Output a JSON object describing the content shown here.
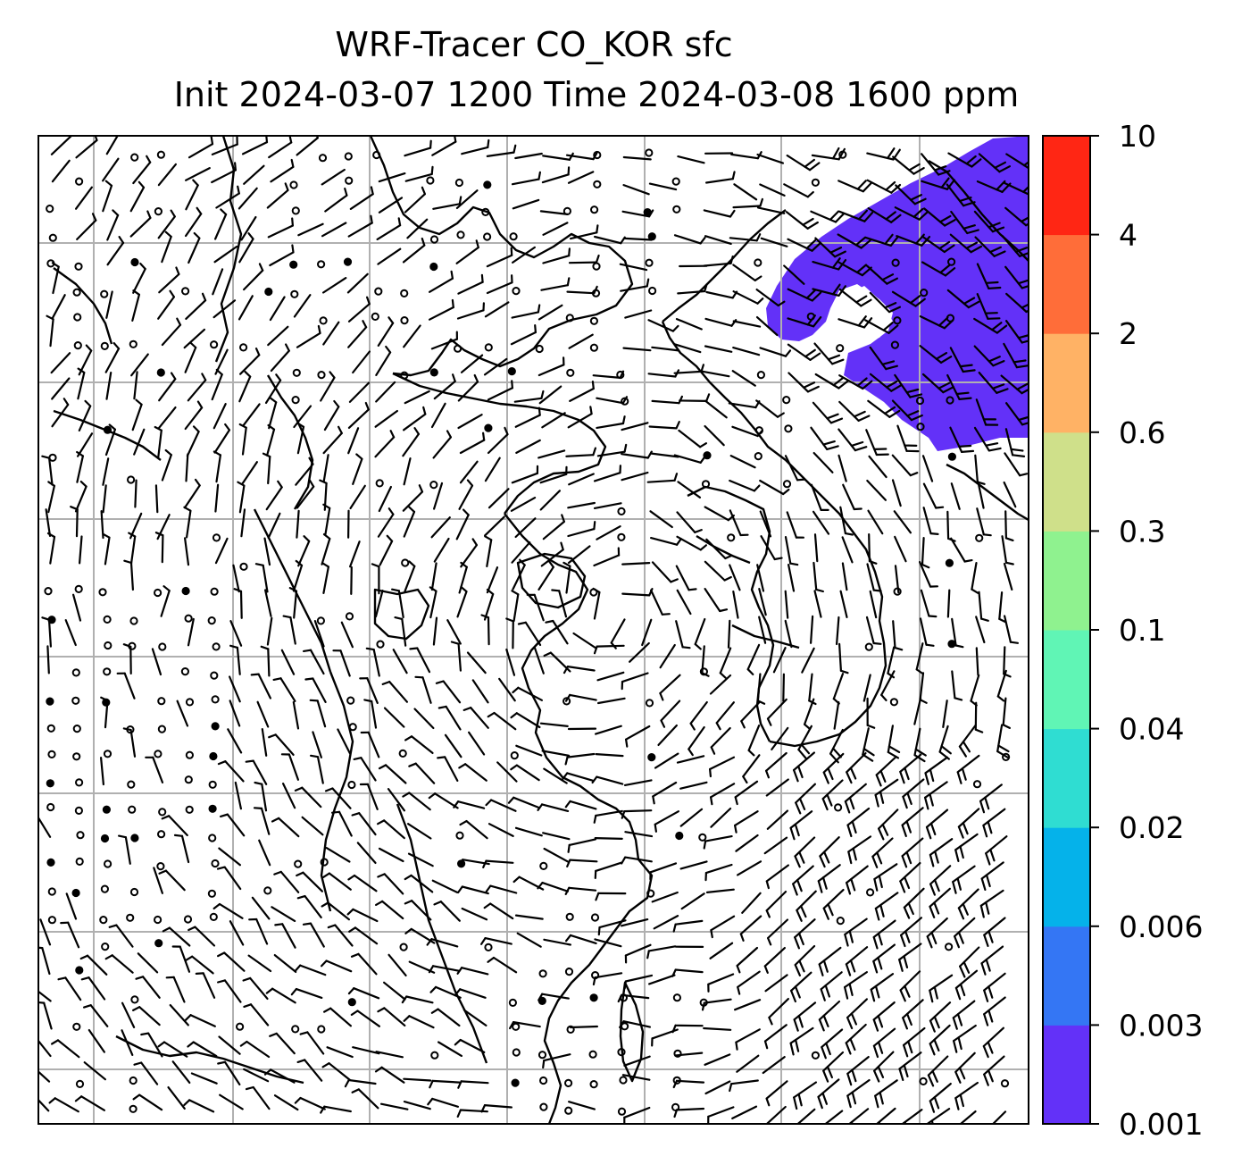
{
  "title": {
    "line1": "WRF-Tracer CO_KOR sfc",
    "line2": "Init 2024-03-07 1200 Time 2024-03-08 1600 ppm"
  },
  "colorbar": {
    "levels": [
      "0.001",
      "0.003",
      "0.006",
      "0.02",
      "0.04",
      "0.1",
      "0.3",
      "0.6",
      "2",
      "4",
      "10"
    ],
    "colors": [
      "#6331f8",
      "#3476f4",
      "#05b2ea",
      "#2fddd2",
      "#60f5b5",
      "#8ff28f",
      "#cfe08a",
      "#ffb265",
      "#ff6d39",
      "#ff2614"
    ]
  },
  "map": {
    "gridlines": true,
    "grid_color": "#b0b0b0",
    "coastline_color": "#000000",
    "barb_color": "#000000",
    "tracer_fill_color": "#6331f8",
    "tracer_region": "northeast corner",
    "tracer_level": "0.001 - 0.003"
  }
}
